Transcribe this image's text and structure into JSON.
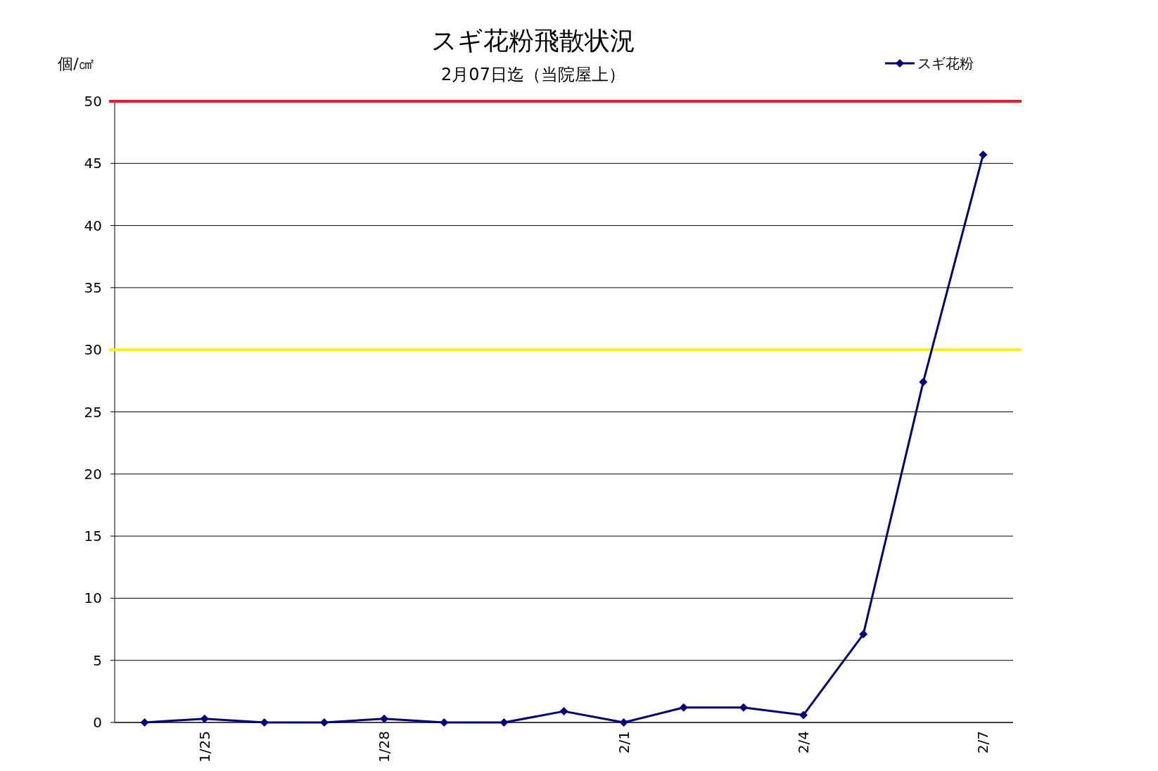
{
  "chart_data": {
    "type": "line",
    "title": "スギ花粉飛散状況",
    "subtitle": "2月07日迄（当院屋上）",
    "ylabel": "個/㎠",
    "categories": [
      null,
      "1/25",
      null,
      null,
      "1/28",
      null,
      null,
      null,
      "2/1",
      null,
      null,
      "2/4",
      null,
      null,
      "2/7"
    ],
    "series": [
      {
        "name": "スギ花粉",
        "color": "#000080",
        "values": [
          0,
          0.3,
          0,
          0,
          0.3,
          0,
          0,
          0.9,
          0,
          1.2,
          1.2,
          0.6,
          7.1,
          27.4,
          45.7
        ]
      }
    ],
    "ylim": [
      0,
      50
    ],
    "yticks": [
      0,
      5,
      10,
      15,
      20,
      25,
      30,
      35,
      40,
      45,
      50
    ],
    "grid": "y",
    "legend": "top right",
    "marker": "diamond",
    "line_style": "solid",
    "ref_lines": [
      {
        "axis": "y",
        "value": 50,
        "color": "#ee1c25"
      },
      {
        "axis": "y",
        "value": 30,
        "color": "#fff200"
      }
    ]
  }
}
